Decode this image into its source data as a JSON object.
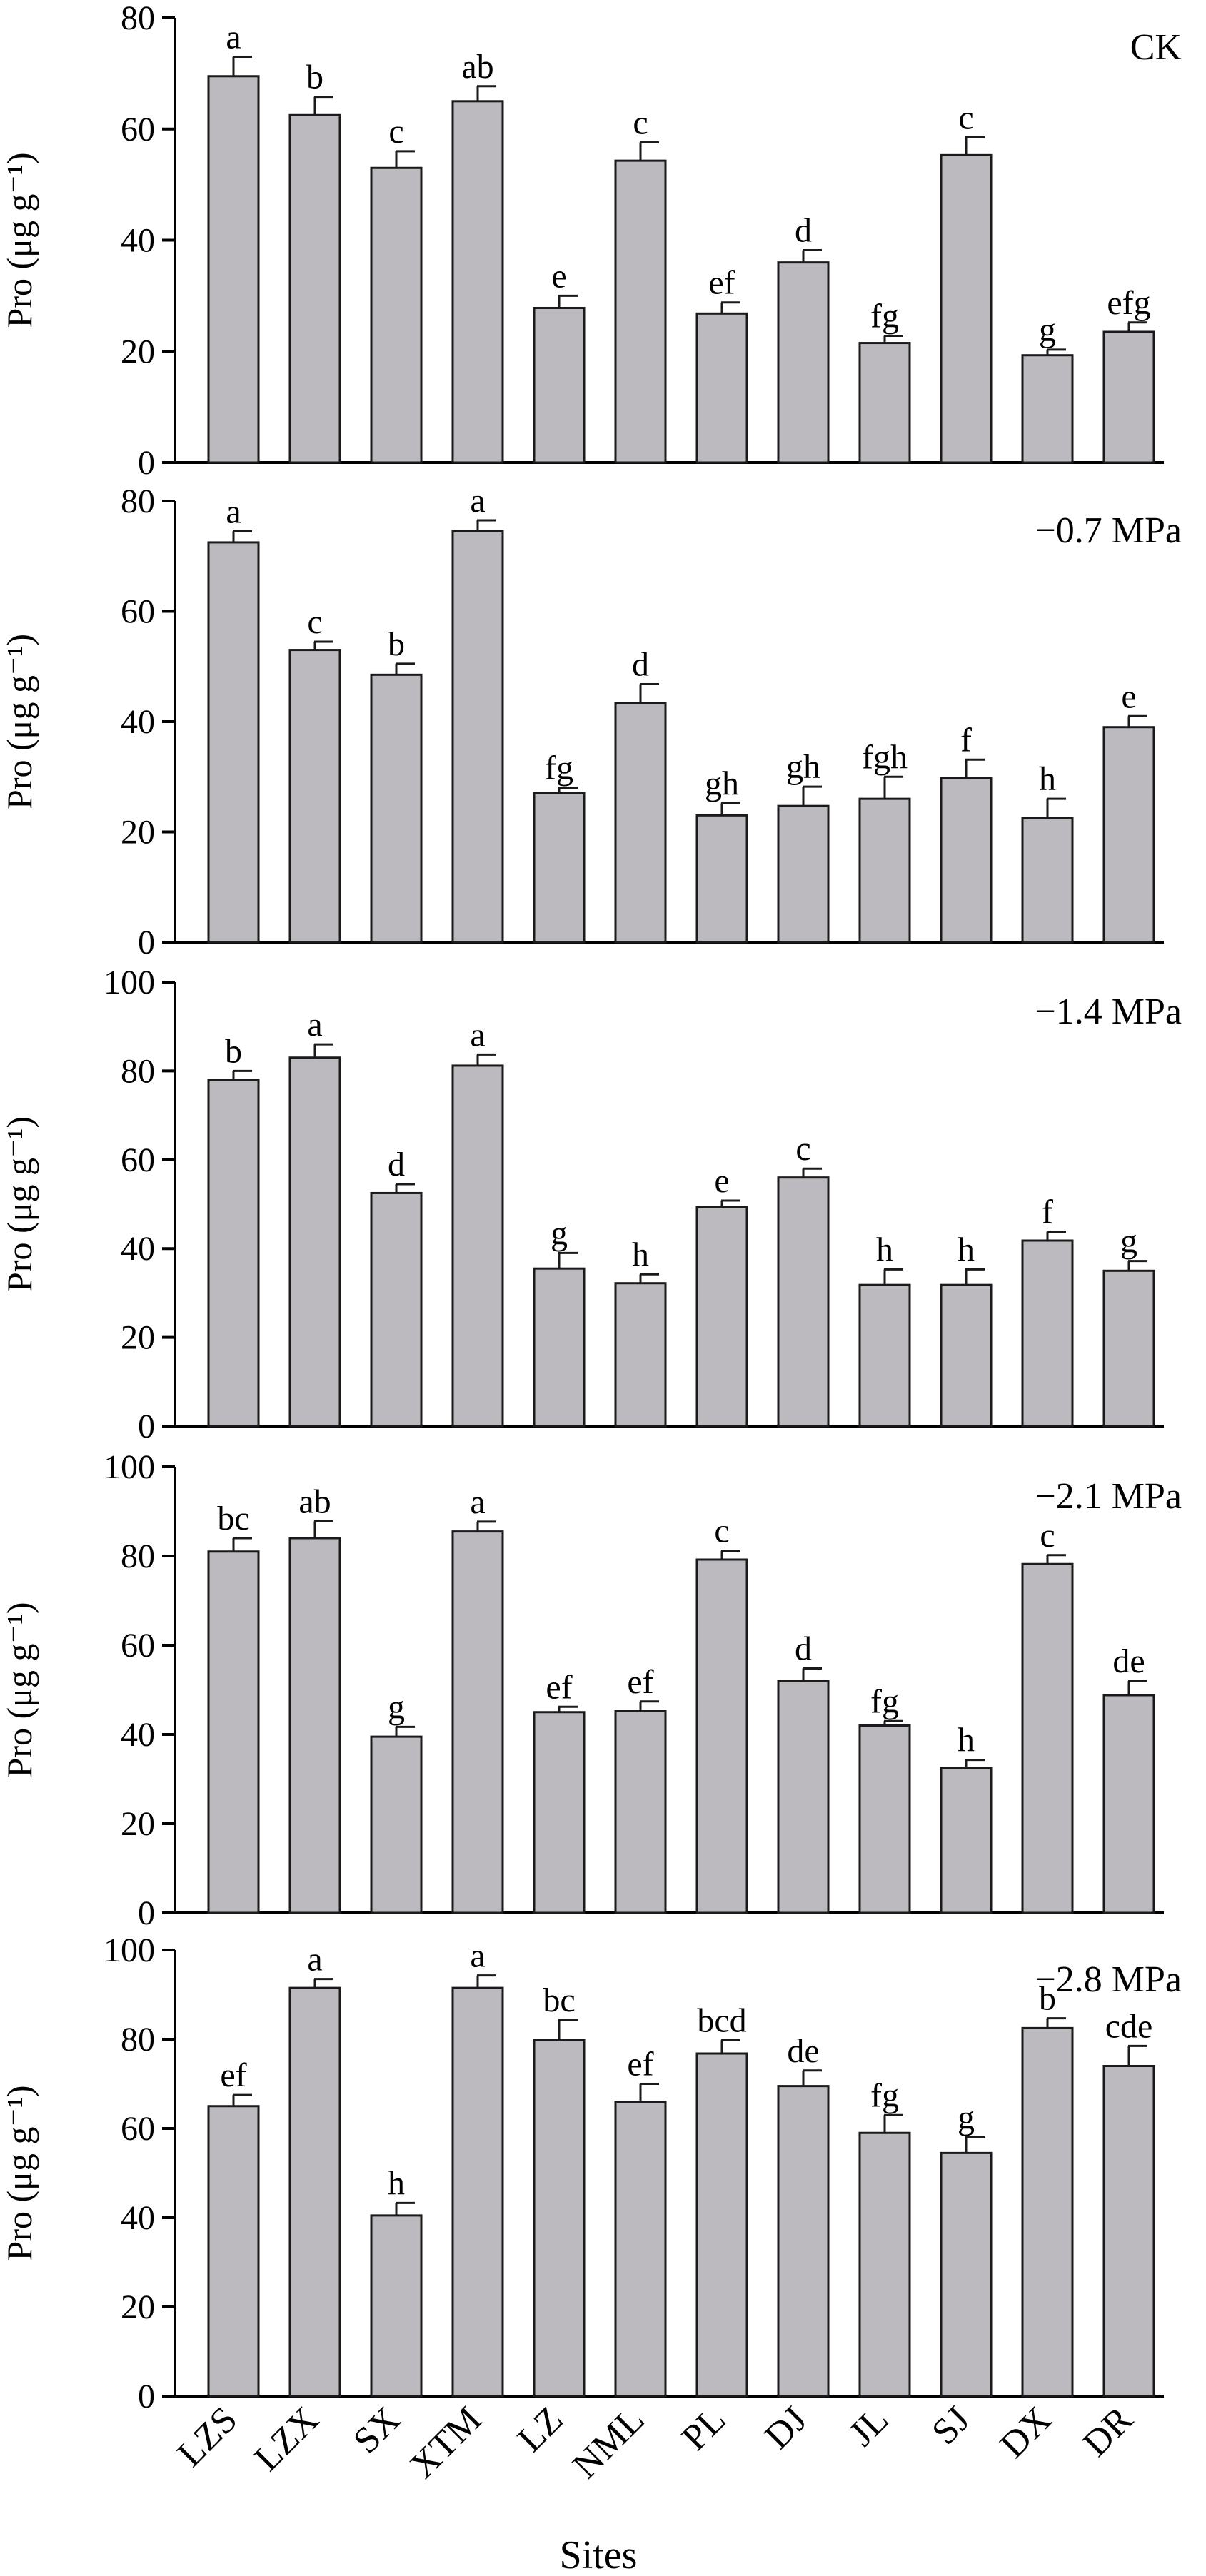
{
  "figure": {
    "xlabel": "Sites",
    "categories": [
      "LZS",
      "LZX",
      "SX",
      "XTM",
      "LZ",
      "NML",
      "PL",
      "DJ",
      "JL",
      "SJ",
      "DX",
      "DR"
    ]
  },
  "colors": {
    "bar_fill": "#bdbabf",
    "bar_stroke": "#1a1a1a",
    "axis": "#000000"
  },
  "chart_data": [
    {
      "type": "bar",
      "title": "CK",
      "ylabel": "Pro (μg g⁻¹)",
      "ylim": [
        0,
        80
      ],
      "yticks": [
        0,
        20,
        40,
        60,
        80
      ],
      "categories": [
        "LZS",
        "LZX",
        "SX",
        "XTM",
        "LZ",
        "NML",
        "PL",
        "DJ",
        "JL",
        "SJ",
        "DX",
        "DR"
      ],
      "values": [
        69.5,
        62.5,
        53,
        65,
        27.8,
        54.3,
        26.8,
        36,
        21.5,
        55.3,
        19.3,
        23.5
      ],
      "errors": [
        3.5,
        3.3,
        3,
        2.7,
        2.2,
        3.3,
        2,
        2.2,
        1.3,
        3.2,
        1,
        1.7
      ],
      "labels": [
        "a",
        "b",
        "c",
        "ab",
        "e",
        "c",
        "ef",
        "d",
        "fg",
        "c",
        "g",
        "efg"
      ]
    },
    {
      "type": "bar",
      "title": "−0.7 MPa",
      "ylabel": "Pro (μg g⁻¹)",
      "ylim": [
        0,
        80
      ],
      "yticks": [
        0,
        20,
        40,
        60,
        80
      ],
      "categories": [
        "LZS",
        "LZX",
        "SX",
        "XTM",
        "LZ",
        "NML",
        "PL",
        "DJ",
        "JL",
        "SJ",
        "DX",
        "DR"
      ],
      "values": [
        72.5,
        53,
        48.5,
        74.5,
        27,
        43.3,
        23,
        24.7,
        26,
        29.8,
        22.5,
        39
      ],
      "errors": [
        2,
        1.5,
        2,
        2,
        1,
        3.5,
        2.2,
        3.5,
        4,
        3.3,
        3.5,
        2
      ],
      "labels": [
        "a",
        "c",
        "b",
        "a",
        "fg",
        "d",
        "gh",
        "gh",
        "fgh",
        "f",
        "h",
        "e"
      ]
    },
    {
      "type": "bar",
      "title": "−1.4 MPa",
      "ylabel": "Pro (μg g⁻¹)",
      "ylim": [
        0,
        100
      ],
      "yticks": [
        0,
        20,
        40,
        60,
        80,
        100
      ],
      "categories": [
        "LZS",
        "LZX",
        "SX",
        "XTM",
        "LZ",
        "NML",
        "PL",
        "DJ",
        "JL",
        "SJ",
        "DX",
        "DR"
      ],
      "values": [
        78,
        83,
        52.5,
        81.2,
        35.5,
        32.2,
        49.3,
        56,
        31.8,
        31.8,
        41.8,
        35
      ],
      "errors": [
        2,
        3,
        2,
        2.5,
        3.5,
        2,
        1.5,
        2,
        3.5,
        3.5,
        2,
        2.2
      ],
      "labels": [
        "b",
        "a",
        "d",
        "a",
        "g",
        "h",
        "e",
        "c",
        "h",
        "h",
        "f",
        "g"
      ]
    },
    {
      "type": "bar",
      "title": "−2.1 MPa",
      "ylabel": "Pro (μg g⁻¹)",
      "ylim": [
        0,
        100
      ],
      "yticks": [
        0,
        20,
        40,
        60,
        80,
        100
      ],
      "categories": [
        "LZS",
        "LZX",
        "SX",
        "XTM",
        "LZ",
        "NML",
        "PL",
        "DJ",
        "JL",
        "SJ",
        "DX",
        "DR"
      ],
      "values": [
        81,
        84,
        39.5,
        85.5,
        45,
        45.2,
        79.2,
        52,
        42,
        32.5,
        78.2,
        48.8
      ],
      "errors": [
        3,
        3.8,
        2.2,
        2.2,
        1.2,
        2.2,
        2,
        2.8,
        1,
        1.8,
        2,
        3.2
      ],
      "labels": [
        "bc",
        "ab",
        "g",
        "a",
        "ef",
        "ef",
        "c",
        "d",
        "fg",
        "h",
        "c",
        "de"
      ]
    },
    {
      "type": "bar",
      "title": "−2.8 MPa",
      "ylabel": "Pro (μg g⁻¹)",
      "ylim": [
        0,
        100
      ],
      "yticks": [
        0,
        20,
        40,
        60,
        80,
        100
      ],
      "categories": [
        "LZS",
        "LZX",
        "SX",
        "XTM",
        "LZ",
        "NML",
        "PL",
        "DJ",
        "JL",
        "SJ",
        "DX",
        "DR"
      ],
      "values": [
        65,
        91.5,
        40.5,
        91.5,
        79.8,
        66,
        76.8,
        69.5,
        59,
        54.5,
        82.5,
        74
      ],
      "errors": [
        2.5,
        2,
        2.8,
        2.8,
        4.5,
        4,
        3,
        3.5,
        4,
        3.5,
        2.2,
        4.5
      ],
      "labels": [
        "ef",
        "a",
        "h",
        "a",
        "bc",
        "ef",
        "bcd",
        "de",
        "fg",
        "g",
        "b",
        "cde"
      ]
    }
  ]
}
